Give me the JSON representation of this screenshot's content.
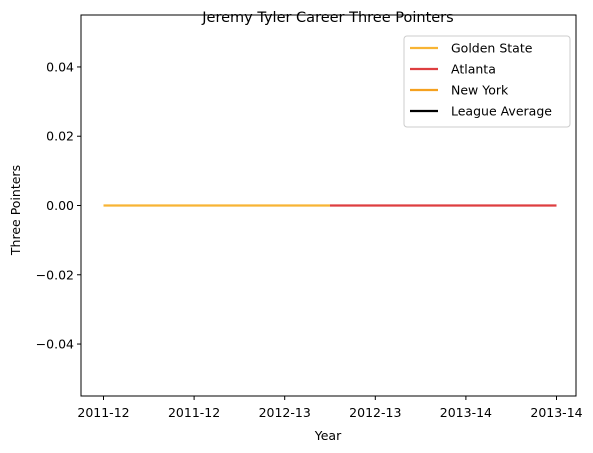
{
  "chart_data": {
    "type": "line",
    "title": "Jeremy Tyler Career Three Pointers",
    "xlabel": "Year",
    "ylabel": "Three Pointers",
    "x_tick_labels": [
      "2011-12",
      "2011-12",
      "2012-13",
      "2012-13",
      "2013-14",
      "2013-14"
    ],
    "y_ticks": [
      0.04,
      0.02,
      0.0,
      -0.02,
      -0.04
    ],
    "y_tick_labels": [
      "0.04",
      "0.02",
      "0.00",
      "−0.02",
      "−0.04"
    ],
    "ylim": [
      -0.055,
      0.055
    ],
    "grid": false,
    "legend_position": "top-right",
    "series": [
      {
        "name": "Golden State",
        "color": "#F8B434",
        "x_index": [
          0,
          1,
          2,
          2.5
        ],
        "values": [
          0,
          0,
          0,
          0
        ]
      },
      {
        "name": "Atlanta",
        "color": "#DE3E40",
        "x_index": [
          2.5,
          3,
          4,
          5
        ],
        "values": [
          0,
          0,
          0,
          0
        ]
      },
      {
        "name": "New York",
        "color": "#F5A11F",
        "x_index": [],
        "values": []
      },
      {
        "name": "League Average",
        "color": "#000000",
        "x_index": [],
        "values": []
      }
    ]
  }
}
